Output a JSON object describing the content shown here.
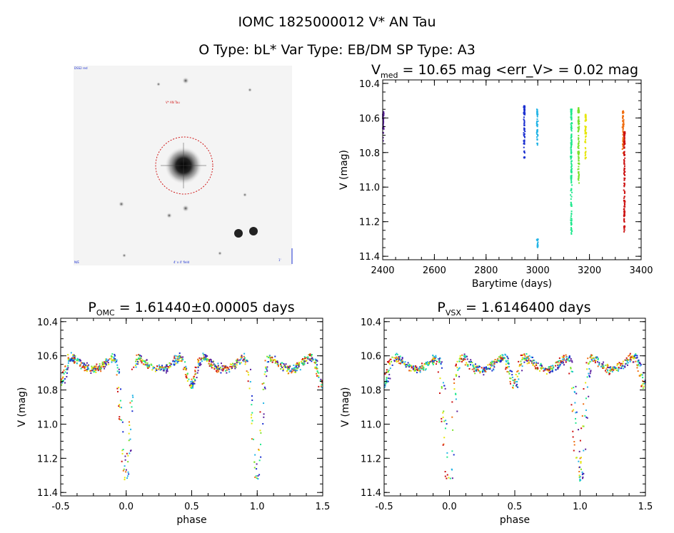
{
  "figure": {
    "title_line1": "IOMC 1825000012   V* AN Tau",
    "title_line2": "O Type: bL*  Var Type: EB/DM  SP Type: A3"
  },
  "finder": {
    "top_left_label": "DSS2 red",
    "object_label": "V* AN Tau",
    "bottom_center_label": "4' x 4' field",
    "bottom_left_label": "N/E",
    "bottom_right_label": "1'"
  },
  "colors": {
    "purple": "#5a1f9e",
    "blue": "#1a2fd0",
    "cyan": "#22b4e6",
    "green": "#1ee88c",
    "lime": "#7be22a",
    "yellow": "#e6e60a",
    "orange": "#ef6d10",
    "red": "#cc1010"
  },
  "chart_data": [
    {
      "id": "lightcurve",
      "type": "scatter",
      "title_main": "V",
      "title_sub": "med",
      "title_rest": " = 10.65 mag <err_V> = 0.02 mag",
      "xlabel": "Barytime (days)",
      "ylabel": "V (mag)",
      "xlim": [
        2400,
        3400
      ],
      "ylim": [
        11.42,
        10.38
      ],
      "xticks": [
        2400,
        2600,
        2800,
        3000,
        3200,
        3400
      ],
      "yticks": [
        10.4,
        10.6,
        10.8,
        11.0,
        11.2,
        11.4
      ],
      "tick_decimals_y": 1,
      "tick_decimals_x": 0,
      "segments": [
        {
          "x": 2402,
          "y_top": 10.56,
          "y_bottom": 10.74,
          "color": "purple"
        },
        {
          "x": 2948,
          "y_top": 10.53,
          "y_bottom": 10.84,
          "color": "blue"
        },
        {
          "x": 2998,
          "y_top": 10.55,
          "y_bottom": 10.76,
          "color": "cyan"
        },
        {
          "x": 2999,
          "y_top": 11.3,
          "y_bottom": 11.35,
          "color": "cyan"
        },
        {
          "x": 3130,
          "y_top": 10.55,
          "y_bottom": 11.29,
          "color": "green"
        },
        {
          "x": 3158,
          "y_top": 10.54,
          "y_bottom": 10.98,
          "color": "lime"
        },
        {
          "x": 3185,
          "y_top": 10.58,
          "y_bottom": 10.84,
          "color": "yellow"
        },
        {
          "x": 3330,
          "y_top": 10.56,
          "y_bottom": 10.82,
          "color": "orange"
        },
        {
          "x": 3335,
          "y_top": 10.68,
          "y_bottom": 11.27,
          "color": "red"
        }
      ]
    },
    {
      "id": "phase_omc",
      "type": "scatter",
      "title_main": "P",
      "title_sub": "OMC",
      "title_rest": " = 1.61440±0.00005 days",
      "xlabel": "phase",
      "ylabel": "V (mag)",
      "xlim": [
        -0.5,
        1.5
      ],
      "ylim": [
        11.42,
        10.38
      ],
      "xticks": [
        -0.5,
        0.0,
        0.5,
        1.0,
        1.5
      ],
      "yticks": [
        10.4,
        10.6,
        10.8,
        11.0,
        11.2,
        11.4
      ],
      "tick_decimals_y": 1,
      "tick_decimals_x": 1,
      "model": {
        "baseline": 10.6,
        "primary_depth": 0.75,
        "primary_width": 0.045,
        "secondary_depth": 0.2,
        "secondary_width": 0.05
      }
    },
    {
      "id": "phase_vsx",
      "type": "scatter",
      "title_main": "P",
      "title_sub": "VSX",
      "title_rest": " = 1.6146400 days",
      "xlabel": "phase",
      "ylabel": "V (mag)",
      "xlim": [
        -0.5,
        1.5
      ],
      "ylim": [
        11.42,
        10.38
      ],
      "xticks": [
        -0.5,
        0.0,
        0.5,
        1.0,
        1.5
      ],
      "yticks": [
        10.4,
        10.6,
        10.8,
        11.0,
        11.2,
        11.4
      ],
      "tick_decimals_y": 1,
      "tick_decimals_x": 1,
      "model": {
        "baseline": 10.6,
        "primary_depth": 0.75,
        "primary_width": 0.045,
        "secondary_depth": 0.2,
        "secondary_width": 0.05
      }
    }
  ]
}
